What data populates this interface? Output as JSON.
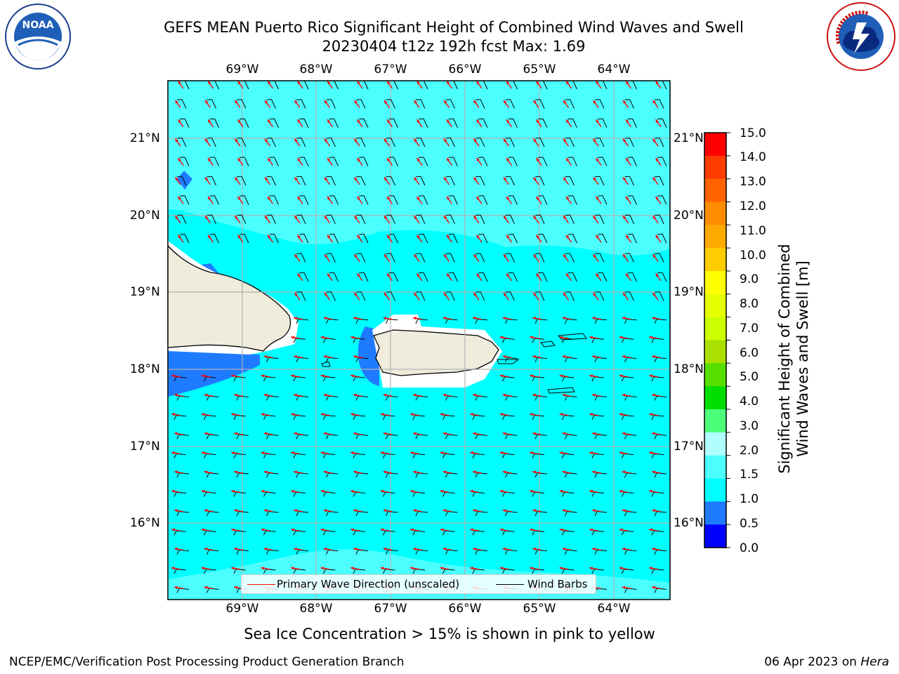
{
  "title": {
    "line1": "GEFS MEAN Puerto Rico Significant Height of Combined Wind Waves and Swell",
    "line2": "20230404 t12z 192h fcst   Max: 1.69"
  },
  "logos": {
    "left": "NOAA",
    "right": "NATIONAL WEATHER SERVICE"
  },
  "map": {
    "lon_labels": [
      "69°W",
      "68°W",
      "67°W",
      "66°W",
      "65°W",
      "64°W"
    ],
    "lat_labels": [
      "21°N",
      "20°N",
      "19°N",
      "18°N",
      "17°N",
      "16°N"
    ],
    "land_color": "#efecdc",
    "sea_color": "#00ffff",
    "contours": [
      "1.0-1.5 m over most of domain",
      "1.5-2.0 m bands in north and south",
      "0.5-1.0 m near western Puerto Rico and eastern Hispaniola"
    ]
  },
  "colorbar": {
    "ticks": [
      "15.0",
      "14.0",
      "13.0",
      "12.0",
      "11.0",
      "10.0",
      "9.0",
      "8.0",
      "7.0",
      "6.0",
      "5.0",
      "4.0",
      "3.0",
      "2.0",
      "1.5",
      "1.0",
      "0.5",
      "0.0"
    ],
    "label_line1": "Significant Height of Combined",
    "label_line2": "Wind Waves and Swell [m]",
    "colors": [
      "#0000ff",
      "#1e7bff",
      "#00ffff",
      "#4cffff",
      "#b0ffff",
      "#4cff7a",
      "#00e000",
      "#55e000",
      "#aae000",
      "#ccff00",
      "#e6ff00",
      "#ffff00",
      "#ffcc00",
      "#ffaa00",
      "#ff8c00",
      "#ff6400",
      "#ff3c00",
      "#ff0000"
    ]
  },
  "legend": {
    "primary": "Primary Wave Direction (unscaled)",
    "barbs": "Wind Barbs",
    "primary_color": "#ff0000",
    "barbs_color": "#000000"
  },
  "footer": {
    "note": "Sea Ice Concentration > 15% is shown in pink to yellow",
    "left": "NCEP/EMC/Verification Post Processing Product Generation Branch",
    "right_date": "06 Apr 2023 on ",
    "right_host": "Hera"
  }
}
